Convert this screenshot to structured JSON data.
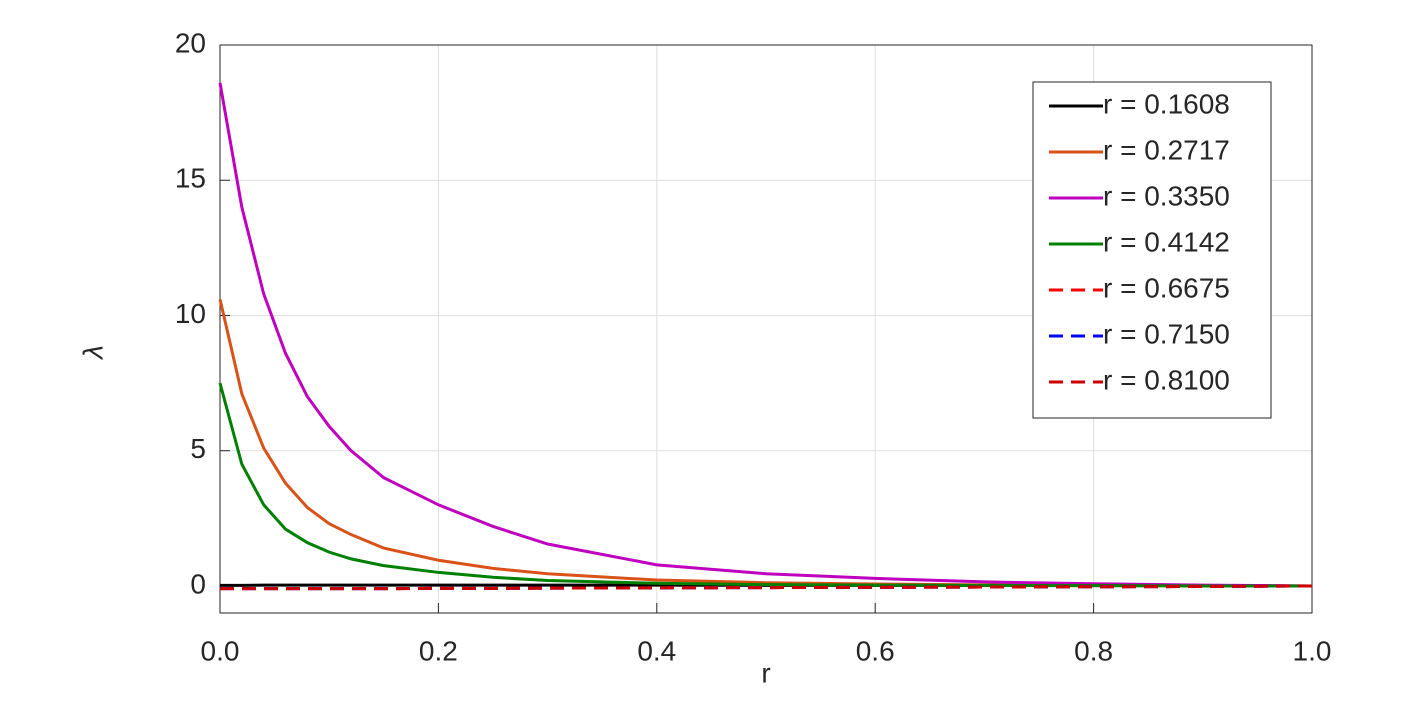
{
  "chart_data": {
    "type": "line",
    "x_label": "r",
    "y_label": "λ",
    "x": [
      0,
      0.02,
      0.04,
      0.06,
      0.08,
      0.1,
      0.12,
      0.15,
      0.2,
      0.25,
      0.3,
      0.4,
      0.5,
      0.6,
      0.7,
      0.8,
      0.9,
      1.0
    ],
    "series": [
      {
        "name": "r = 0.1608",
        "color": "#000000",
        "dashed": false,
        "values": [
          0.02,
          0.02,
          0.03,
          0.03,
          0.03,
          0.03,
          0.03,
          0.03,
          0.03,
          0.03,
          0.03,
          0.03,
          0.02,
          0.02,
          0.02,
          0.01,
          0.01,
          0
        ]
      },
      {
        "name": "r = 0.2717",
        "color": "#d95319",
        "dashed": false,
        "values": [
          10.6,
          7.1,
          5.1,
          3.8,
          2.9,
          2.3,
          1.9,
          1.4,
          0.95,
          0.65,
          0.45,
          0.22,
          0.12,
          0.07,
          0.04,
          0.02,
          0.01,
          0
        ]
      },
      {
        "name": "r = 0.3350",
        "color": "#bf00bf",
        "dashed": false,
        "values": [
          18.6,
          14.0,
          10.8,
          8.6,
          7.0,
          5.9,
          5.0,
          4.0,
          3.0,
          2.2,
          1.55,
          0.78,
          0.45,
          0.28,
          0.15,
          0.08,
          0.03,
          0
        ]
      },
      {
        "name": "r = 0.4142",
        "color": "#008000",
        "dashed": false,
        "values": [
          7.5,
          4.5,
          3.0,
          2.1,
          1.6,
          1.25,
          1.0,
          0.75,
          0.5,
          0.32,
          0.2,
          0.1,
          0.05,
          0.03,
          0.02,
          0.01,
          0,
          0
        ]
      },
      {
        "name": "r = 0.6675",
        "color": "#ff0000",
        "dashed": true,
        "values": [
          -0.1,
          -0.1,
          -0.1,
          -0.1,
          -0.1,
          -0.1,
          -0.1,
          -0.1,
          -0.09,
          -0.09,
          -0.08,
          -0.07,
          -0.06,
          -0.05,
          -0.04,
          -0.03,
          -0.02,
          0
        ]
      },
      {
        "name": "r = 0.7150",
        "color": "#0000ff",
        "dashed": true,
        "values": [
          -0.1,
          -0.1,
          -0.1,
          -0.1,
          -0.1,
          -0.1,
          -0.1,
          -0.1,
          -0.09,
          -0.09,
          -0.08,
          -0.07,
          -0.06,
          -0.05,
          -0.04,
          -0.03,
          -0.02,
          0
        ]
      },
      {
        "name": "r = 0.8100",
        "color": "#cc0000",
        "dashed": true,
        "values": [
          -0.1,
          -0.1,
          -0.1,
          -0.1,
          -0.1,
          -0.1,
          -0.1,
          -0.1,
          -0.09,
          -0.09,
          -0.08,
          -0.07,
          -0.06,
          -0.05,
          -0.04,
          -0.03,
          -0.02,
          0
        ]
      }
    ],
    "xlim": [
      0,
      1
    ],
    "xticks": [
      {
        "value": 0,
        "label": "0.0"
      },
      0.2,
      0.4,
      0.6,
      0.8,
      {
        "value": 1,
        "label": "1.0"
      }
    ],
    "ylim": [
      -1,
      20
    ],
    "yticks": [
      0,
      5,
      10,
      15,
      20
    ],
    "grid": true,
    "legend": "northeast"
  }
}
